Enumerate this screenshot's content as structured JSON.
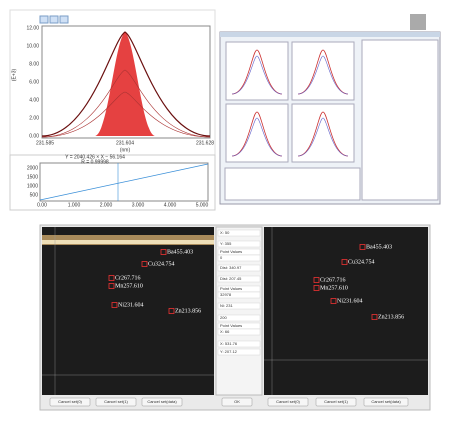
{
  "spectrum": {
    "y_unit": "(E+3)",
    "yticks": [
      "12.00",
      "10.00",
      "8.00",
      "6.00",
      "4.00",
      "2.00",
      "0.00"
    ],
    "xticks": [
      "231.585",
      "231.604",
      "231.628"
    ],
    "x_label": "(nm)"
  },
  "calibration": {
    "equation": "Y = 2040.426 × X − 56.164",
    "r": "R = 0.99998",
    "yticks": [
      "2000",
      "1500",
      "1000",
      "500"
    ],
    "xticks": [
      "0.00",
      "1.000",
      "2.000",
      "3.000",
      "4.000",
      "5.000"
    ]
  },
  "image_left": {
    "labels": [
      "Ba455.403",
      "Cu324.754",
      "Cr267.716",
      "Mn257.610",
      "Ni231.604",
      "Zn213.856"
    ]
  },
  "image_right": {
    "labels": [
      "Ba455.403",
      "Cu324.754",
      "Cr267.716",
      "Mn257.610",
      "Ni231.604",
      "Zn213.856"
    ]
  },
  "controls": {
    "fields": [
      "X: 50",
      "Y: 355",
      "Point Values",
      "0",
      "Dist: 340.97",
      "Dist: 207.45",
      "Point Values",
      "32978",
      "Ni: 231",
      "200",
      "Point Values",
      "X: 66",
      "X: 531.76",
      "Y: 207.12"
    ]
  },
  "buttons": [
    "Cancel set(0)",
    "Cancel set(1)",
    "Cancel set(data)",
    "OK",
    "Cancel set(0)",
    "Cancel set(1)",
    "Cancel set(data)"
  ]
}
